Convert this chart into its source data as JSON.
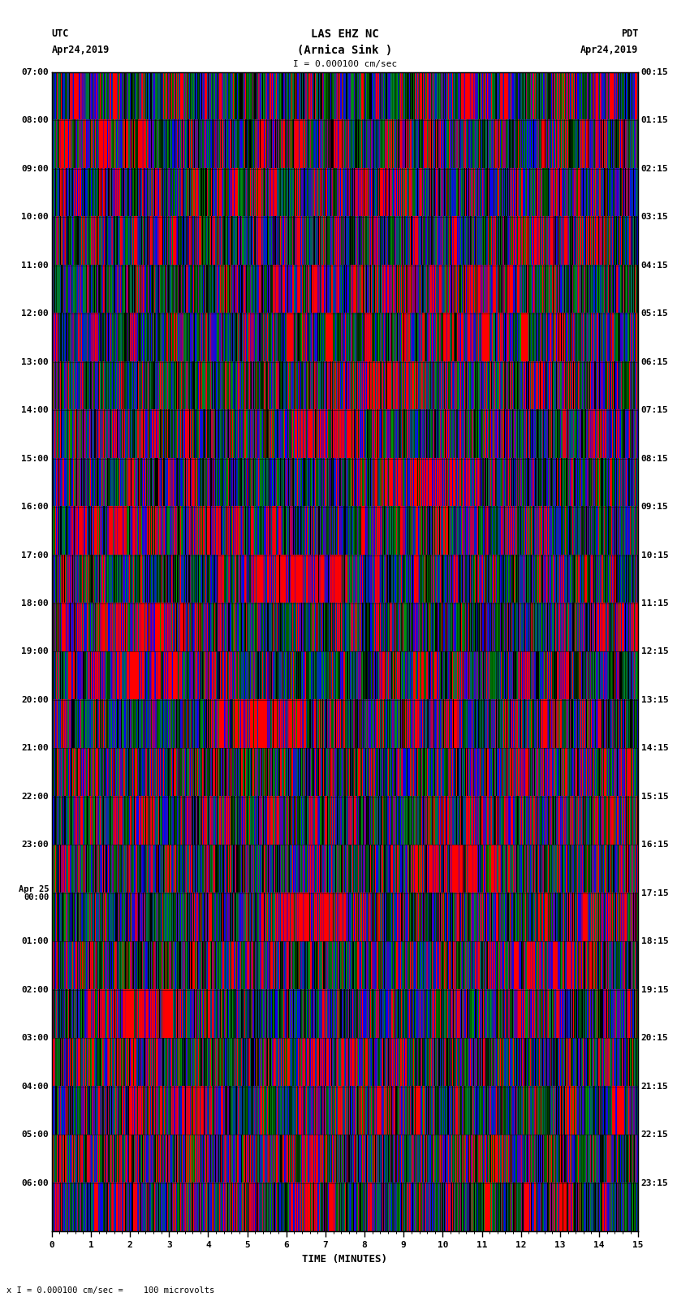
{
  "title_line1": "LAS EHZ NC",
  "title_line2": "(Arnica Sink )",
  "scale_label": "I = 0.000100 cm/sec",
  "footer_label": "x I = 0.000100 cm/sec =    100 microvolts",
  "left_label_top": "UTC",
  "left_label_date": "Apr24,2019",
  "right_label_top": "PDT",
  "right_label_date": "Apr24,2019",
  "xlabel": "TIME (MINUTES)",
  "left_times": [
    "07:00",
    "08:00",
    "09:00",
    "10:00",
    "11:00",
    "12:00",
    "13:00",
    "14:00",
    "15:00",
    "16:00",
    "17:00",
    "18:00",
    "19:00",
    "20:00",
    "21:00",
    "22:00",
    "23:00",
    "Apr 25\n00:00",
    "01:00",
    "02:00",
    "03:00",
    "04:00",
    "05:00",
    "06:00"
  ],
  "right_times": [
    "00:15",
    "01:15",
    "02:15",
    "03:15",
    "04:15",
    "05:15",
    "06:15",
    "07:15",
    "08:15",
    "09:15",
    "10:15",
    "11:15",
    "12:15",
    "13:15",
    "14:15",
    "15:15",
    "16:15",
    "17:15",
    "18:15",
    "19:15",
    "20:15",
    "21:15",
    "22:15",
    "23:15"
  ],
  "xlim": [
    0,
    15
  ],
  "n_rows": 24,
  "seed": 42
}
